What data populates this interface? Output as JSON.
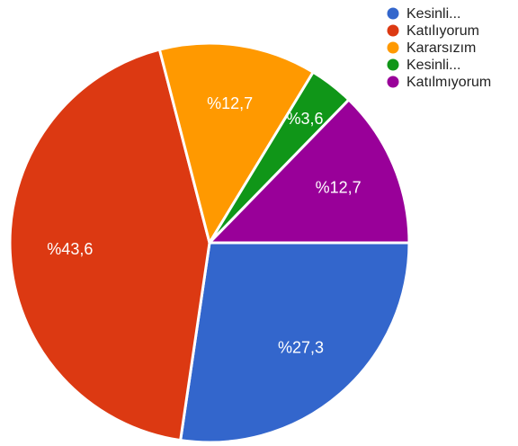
{
  "chart_data": {
    "type": "pie",
    "categories": [
      "Kesinli...",
      "Katılıyorum",
      "Kararsızım",
      "Kesinli...",
      "Katılmıyorum"
    ],
    "values": [
      27.3,
      43.6,
      12.7,
      3.6,
      12.7
    ],
    "value_labels": [
      "%27,3",
      "%43,6",
      "%12,7",
      "%3,6",
      "%12,7"
    ],
    "colors": [
      "#3366cc",
      "#dc3912",
      "#ff9900",
      "#109618",
      "#990099"
    ],
    "legend": "top-right"
  }
}
